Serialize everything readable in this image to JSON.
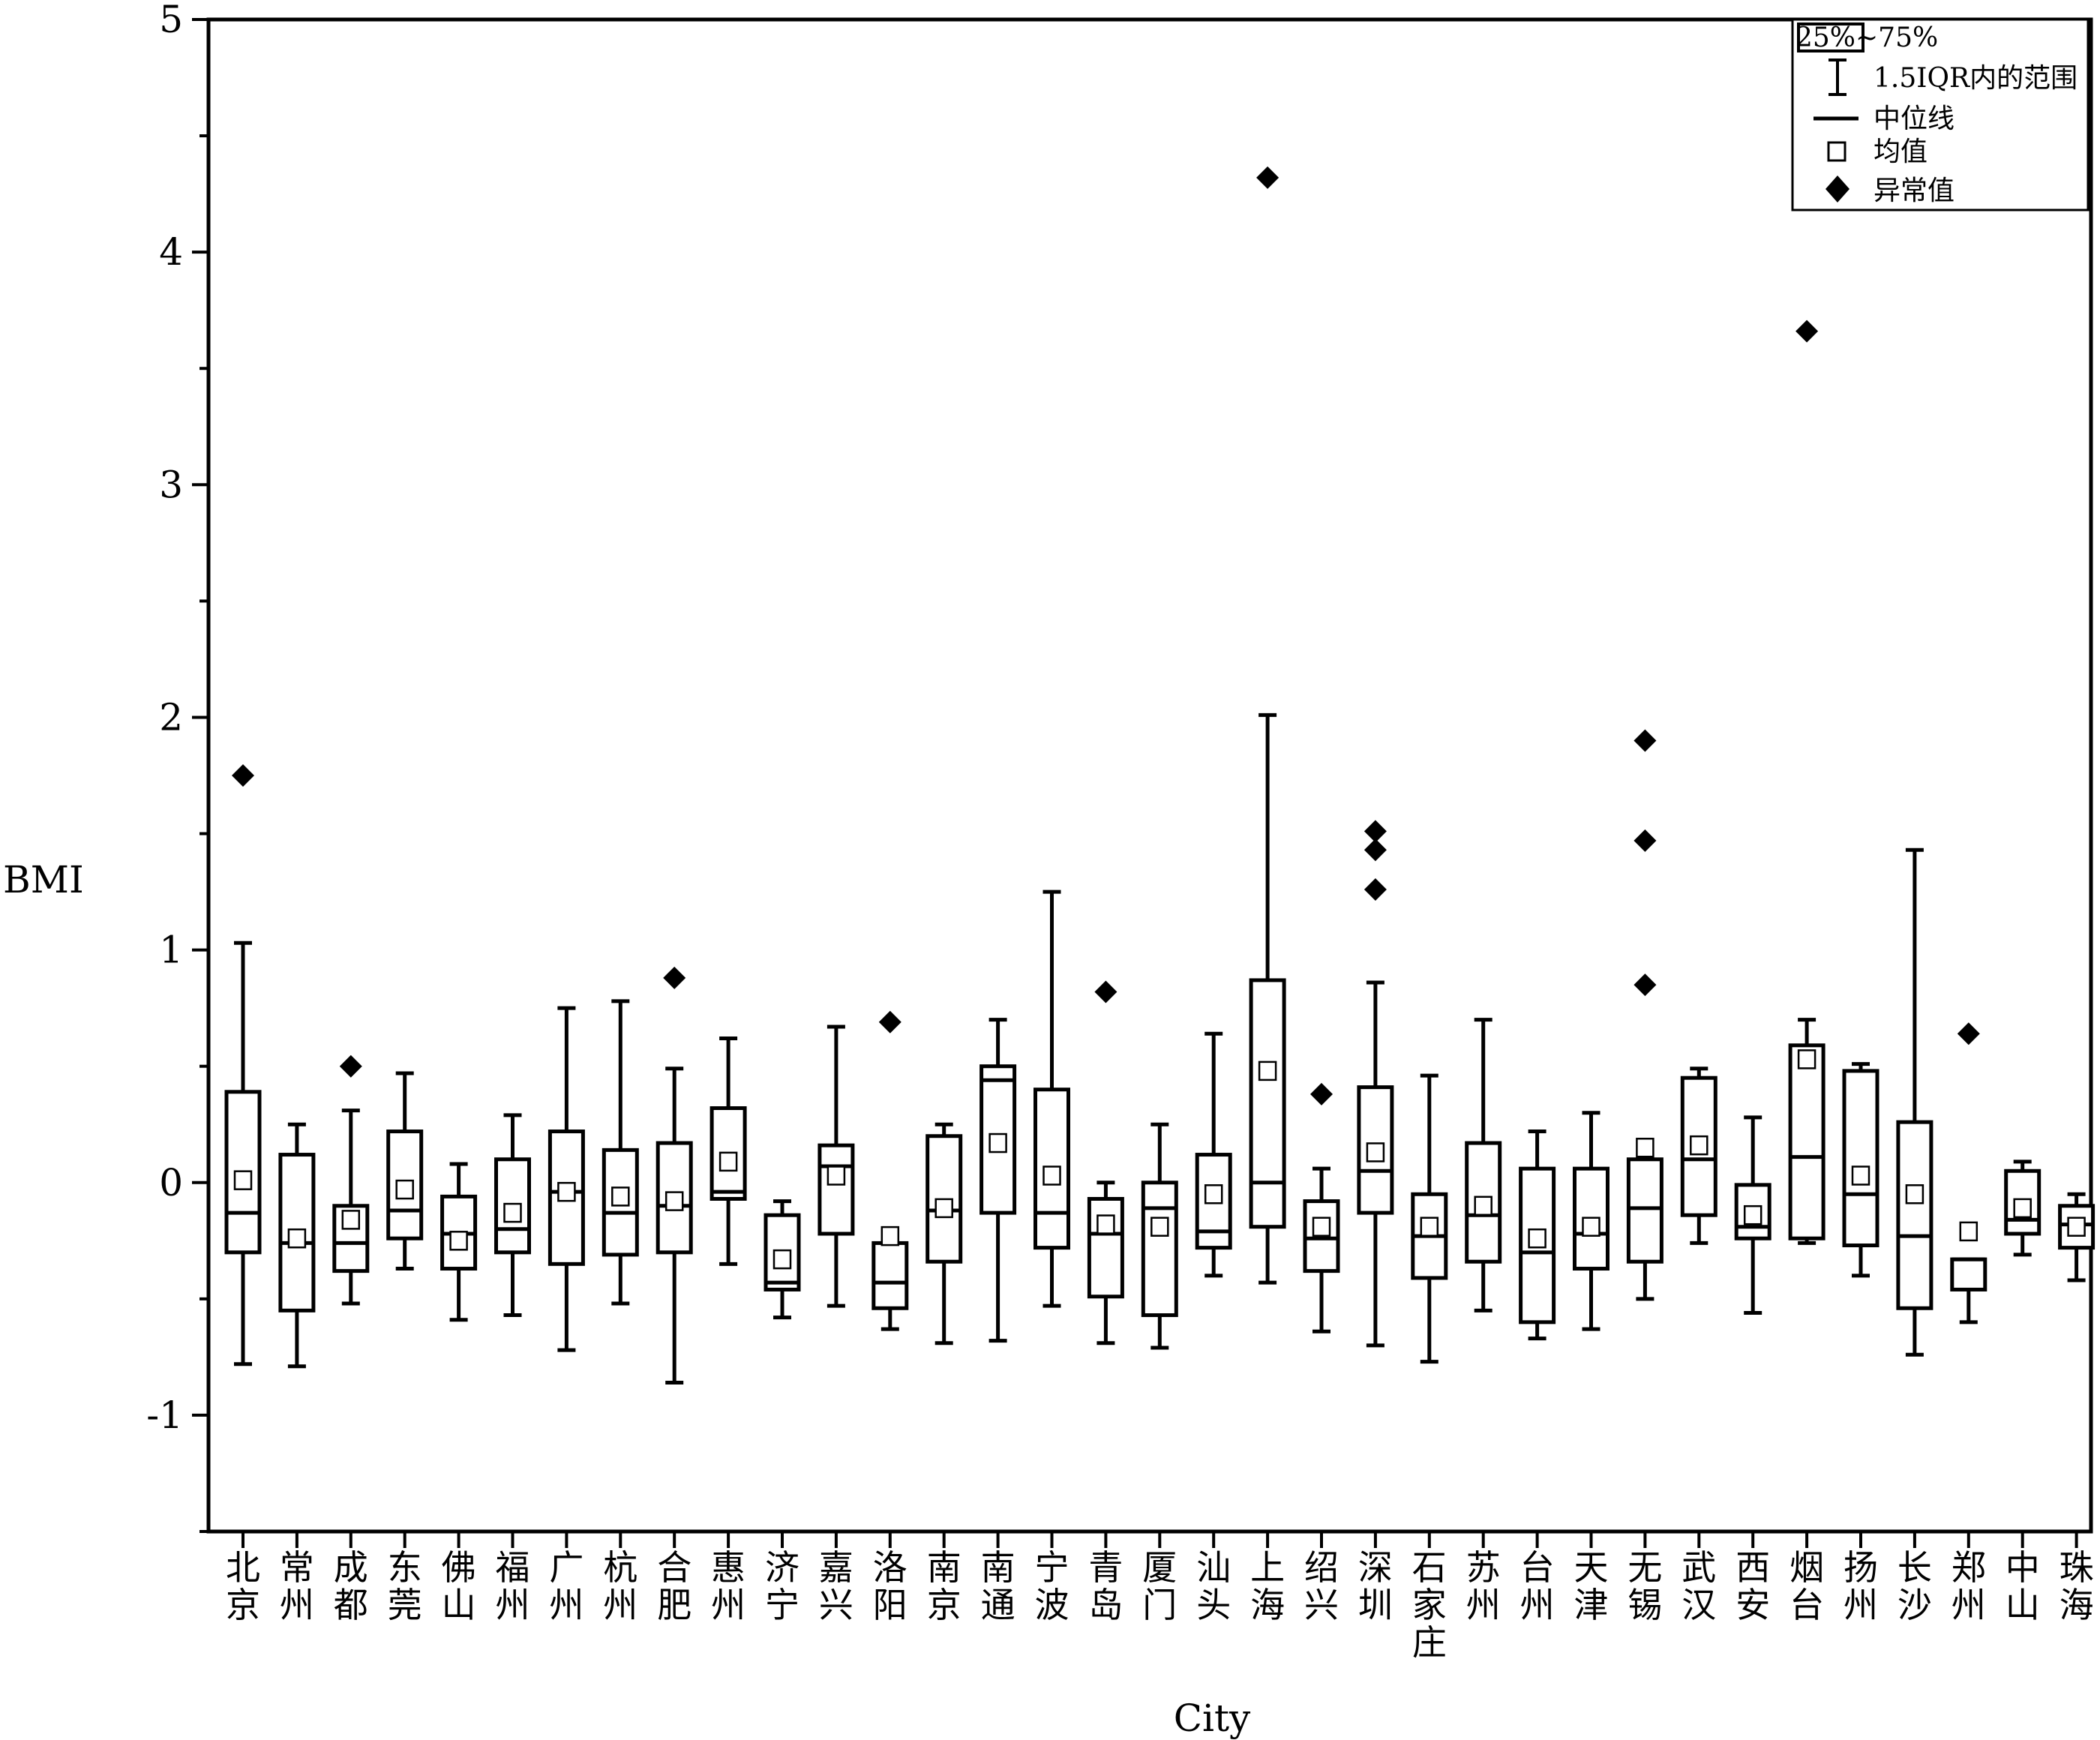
{
  "chart_data": {
    "type": "box",
    "xlabel": "City",
    "ylabel": "BMI",
    "ylim": [
      -1.5,
      5
    ],
    "yticks": [
      -1,
      0,
      1,
      2,
      3,
      4,
      5
    ],
    "grid": false,
    "legend_position": "top-right",
    "legend": {
      "box": "25%~75%",
      "whisker": "1.5IQR内的范围",
      "median": "中位线",
      "mean": "均值",
      "outlier": "异常值"
    },
    "boxes": [
      {
        "city": "北京",
        "lower": -0.78,
        "q1": -0.3,
        "median": -0.13,
        "q3": 0.39,
        "upper": 1.03,
        "mean": 0.01,
        "outliers": [
          1.75
        ]
      },
      {
        "city": "常州",
        "lower": -0.79,
        "q1": -0.55,
        "median": -0.26,
        "q3": 0.12,
        "upper": 0.25,
        "mean": -0.24,
        "outliers": []
      },
      {
        "city": "成都",
        "lower": -0.52,
        "q1": -0.38,
        "median": -0.26,
        "q3": -0.1,
        "upper": 0.31,
        "mean": -0.16,
        "outliers": [
          0.5
        ]
      },
      {
        "city": "东莞",
        "lower": -0.37,
        "q1": -0.24,
        "median": -0.12,
        "q3": 0.22,
        "upper": 0.47,
        "mean": -0.03,
        "outliers": []
      },
      {
        "city": "佛山",
        "lower": -0.59,
        "q1": -0.37,
        "median": -0.22,
        "q3": -0.06,
        "upper": 0.08,
        "mean": -0.25,
        "outliers": []
      },
      {
        "city": "福州",
        "lower": -0.57,
        "q1": -0.3,
        "median": -0.2,
        "q3": 0.1,
        "upper": 0.29,
        "mean": -0.13,
        "outliers": []
      },
      {
        "city": "广州",
        "lower": -0.72,
        "q1": -0.35,
        "median": -0.04,
        "q3": 0.22,
        "upper": 0.75,
        "mean": -0.04,
        "outliers": []
      },
      {
        "city": "杭州",
        "lower": -0.52,
        "q1": -0.31,
        "median": -0.13,
        "q3": 0.14,
        "upper": 0.78,
        "mean": -0.06,
        "outliers": []
      },
      {
        "city": "合肥",
        "lower": -0.86,
        "q1": -0.3,
        "median": -0.1,
        "q3": 0.17,
        "upper": 0.49,
        "mean": -0.08,
        "outliers": [
          0.88
        ]
      },
      {
        "city": "惠州",
        "lower": -0.35,
        "q1": -0.07,
        "median": -0.04,
        "q3": 0.32,
        "upper": 0.62,
        "mean": 0.09,
        "outliers": []
      },
      {
        "city": "济宁",
        "lower": -0.58,
        "q1": -0.46,
        "median": -0.43,
        "q3": -0.14,
        "upper": -0.08,
        "mean": -0.33,
        "outliers": []
      },
      {
        "city": "嘉兴",
        "lower": -0.53,
        "q1": -0.22,
        "median": 0.07,
        "q3": 0.16,
        "upper": 0.67,
        "mean": 0.03,
        "outliers": []
      },
      {
        "city": "洛阳",
        "lower": -0.63,
        "q1": -0.54,
        "median": -0.43,
        "q3": -0.26,
        "upper": -0.26,
        "mean": -0.23,
        "outliers": [
          0.69
        ]
      },
      {
        "city": "南京",
        "lower": -0.69,
        "q1": -0.34,
        "median": -0.12,
        "q3": 0.2,
        "upper": 0.25,
        "mean": -0.11,
        "outliers": []
      },
      {
        "city": "南通",
        "lower": -0.68,
        "q1": -0.13,
        "median": 0.44,
        "q3": 0.5,
        "upper": 0.7,
        "mean": 0.17,
        "outliers": []
      },
      {
        "city": "宁波",
        "lower": -0.53,
        "q1": -0.28,
        "median": -0.13,
        "q3": 0.4,
        "upper": 1.25,
        "mean": 0.03,
        "outliers": []
      },
      {
        "city": "青岛",
        "lower": -0.69,
        "q1": -0.49,
        "median": -0.22,
        "q3": -0.07,
        "upper": 0.0,
        "mean": -0.18,
        "outliers": [
          0.82
        ]
      },
      {
        "city": "厦门",
        "lower": -0.71,
        "q1": -0.57,
        "median": -0.11,
        "q3": 0.0,
        "upper": 0.25,
        "mean": -0.19,
        "outliers": []
      },
      {
        "city": "汕头",
        "lower": -0.4,
        "q1": -0.28,
        "median": -0.21,
        "q3": 0.12,
        "upper": 0.64,
        "mean": -0.05,
        "outliers": []
      },
      {
        "city": "上海",
        "lower": -0.43,
        "q1": -0.19,
        "median": 0.0,
        "q3": 0.87,
        "upper": 2.01,
        "mean": 0.48,
        "outliers": [
          4.32
        ]
      },
      {
        "city": "绍兴",
        "lower": -0.64,
        "q1": -0.38,
        "median": -0.24,
        "q3": -0.08,
        "upper": 0.06,
        "mean": -0.19,
        "outliers": [
          0.38
        ]
      },
      {
        "city": "深圳",
        "lower": -0.7,
        "q1": -0.13,
        "median": 0.05,
        "q3": 0.41,
        "upper": 0.86,
        "mean": 0.13,
        "outliers": [
          1.26,
          1.43,
          1.51
        ]
      },
      {
        "city": "石家庄",
        "lower": -0.77,
        "q1": -0.41,
        "median": -0.23,
        "q3": -0.05,
        "upper": 0.46,
        "mean": -0.19,
        "outliers": []
      },
      {
        "city": "苏州",
        "lower": -0.55,
        "q1": -0.34,
        "median": -0.14,
        "q3": 0.17,
        "upper": 0.7,
        "mean": -0.1,
        "outliers": []
      },
      {
        "city": "台州",
        "lower": -0.67,
        "q1": -0.6,
        "median": -0.3,
        "q3": 0.06,
        "upper": 0.22,
        "mean": -0.24,
        "outliers": []
      },
      {
        "city": "天津",
        "lower": -0.63,
        "q1": -0.37,
        "median": -0.22,
        "q3": 0.06,
        "upper": 0.3,
        "mean": -0.19,
        "outliers": []
      },
      {
        "city": "无锡",
        "lower": -0.5,
        "q1": -0.34,
        "median": -0.11,
        "q3": 0.1,
        "upper": 0.1,
        "mean": 0.15,
        "outliers": [
          0.85,
          1.47,
          1.9
        ]
      },
      {
        "city": "武汉",
        "lower": -0.26,
        "q1": -0.14,
        "median": 0.1,
        "q3": 0.45,
        "upper": 0.49,
        "mean": 0.16,
        "outliers": []
      },
      {
        "city": "西安",
        "lower": -0.56,
        "q1": -0.24,
        "median": -0.19,
        "q3": -0.01,
        "upper": 0.28,
        "mean": -0.14,
        "outliers": []
      },
      {
        "city": "烟台",
        "lower": -0.26,
        "q1": -0.24,
        "median": 0.11,
        "q3": 0.59,
        "upper": 0.7,
        "mean": 0.53,
        "outliers": [
          3.66
        ]
      },
      {
        "city": "扬州",
        "lower": -0.4,
        "q1": -0.27,
        "median": -0.05,
        "q3": 0.48,
        "upper": 0.51,
        "mean": 0.03,
        "outliers": []
      },
      {
        "city": "长沙",
        "lower": -0.74,
        "q1": -0.54,
        "median": -0.23,
        "q3": 0.26,
        "upper": 1.43,
        "mean": -0.05,
        "outliers": []
      },
      {
        "city": "郑州",
        "lower": -0.6,
        "q1": -0.46,
        "median": -0.33,
        "q3": -0.33,
        "upper": -0.33,
        "mean": -0.21,
        "outliers": [
          0.64
        ]
      },
      {
        "city": "中山",
        "lower": -0.31,
        "q1": -0.22,
        "median": -0.16,
        "q3": 0.05,
        "upper": 0.09,
        "mean": -0.11,
        "outliers": []
      },
      {
        "city": "珠海",
        "lower": -0.42,
        "q1": -0.28,
        "median": -0.18,
        "q3": -0.1,
        "upper": -0.05,
        "mean": -0.19,
        "outliers": []
      }
    ]
  }
}
